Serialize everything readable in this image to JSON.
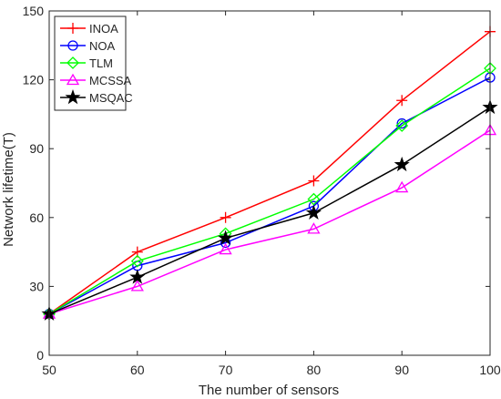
{
  "chart_data": {
    "type": "line",
    "title": "",
    "xlabel": "The number of sensors",
    "ylabel": "Network lifetime(T)",
    "x": [
      50,
      60,
      70,
      80,
      90,
      100
    ],
    "xlim": [
      50,
      100
    ],
    "ylim": [
      0,
      150
    ],
    "xticks": [
      50,
      60,
      70,
      80,
      90,
      100
    ],
    "yticks": [
      0,
      30,
      60,
      90,
      120,
      150
    ],
    "grid": false,
    "legend_position": "top-left",
    "series": [
      {
        "name": "INOA",
        "values": [
          18,
          45,
          60,
          76,
          111,
          141
        ],
        "color": "#ff0000",
        "marker": "plus"
      },
      {
        "name": "NOA",
        "values": [
          18,
          39,
          49,
          65,
          101,
          121
        ],
        "color": "#0000ff",
        "marker": "circle"
      },
      {
        "name": "TLM",
        "values": [
          18,
          41,
          53,
          68,
          100,
          125
        ],
        "color": "#00ff00",
        "marker": "diamond"
      },
      {
        "name": "MCSSA",
        "values": [
          18,
          30,
          46,
          55,
          73,
          98
        ],
        "color": "#ff00ff",
        "marker": "triangle"
      },
      {
        "name": "MSQAC",
        "values": [
          18,
          34,
          51,
          62,
          83,
          108
        ],
        "color": "#000000",
        "marker": "star"
      }
    ]
  }
}
